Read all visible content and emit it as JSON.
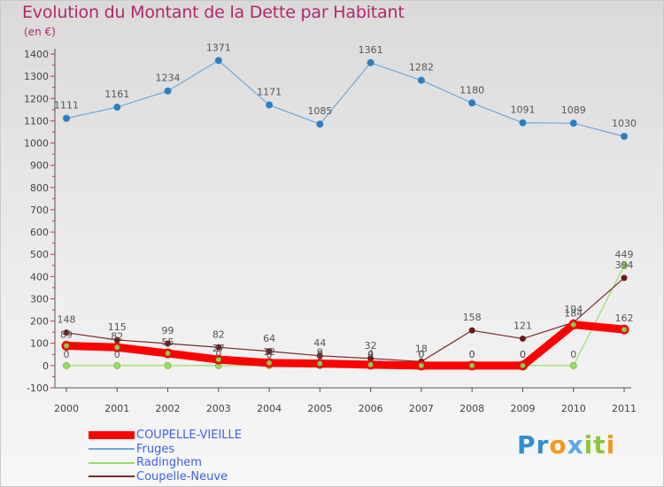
{
  "title": "Evolution du Montant de la Dette par Habitant",
  "subtitle": "(en €)",
  "brand": "Proxiti",
  "chart_data": {
    "type": "line",
    "title": "Evolution du Montant de la Dette par Habitant",
    "subtitle": "(en €)",
    "x": [
      "2000",
      "2001",
      "2002",
      "2003",
      "2004",
      "2005",
      "2006",
      "2007",
      "2008",
      "2009",
      "2010",
      "2011"
    ],
    "ylim": [
      -100,
      1400
    ],
    "yticks": [
      -100,
      0,
      100,
      200,
      300,
      400,
      500,
      600,
      700,
      800,
      900,
      1000,
      1100,
      1200,
      1300,
      1400
    ],
    "grid": false,
    "legend_position": "bottom-left",
    "series": [
      {
        "name": "COUPELLE-VIEILLE",
        "color": "#ff0000",
        "values": [
          89,
          82,
          55,
          27,
          12,
          9,
          4,
          0,
          0,
          0,
          184,
          162
        ],
        "labels": [
          "89",
          "82",
          "55",
          "27",
          "12",
          "9",
          "4",
          "0",
          "0",
          "0",
          "184",
          "162"
        ]
      },
      {
        "name": "Fruges",
        "color": "#6fa8dc",
        "values": [
          1111,
          1161,
          1234,
          1371,
          1171,
          1085,
          1361,
          1282,
          1180,
          1091,
          1089,
          1030
        ],
        "labels": [
          "1111",
          "1161",
          "1234",
          "1371",
          "1171",
          "1085",
          "1361",
          "1282",
          "1180",
          "1091",
          "1089",
          "1030"
        ]
      },
      {
        "name": "Radinghem",
        "color": "#99dd66",
        "values": [
          0,
          0,
          0,
          0,
          0,
          0,
          0,
          0,
          0,
          0,
          0,
          449
        ],
        "labels": [
          "0",
          "0",
          "",
          "0",
          "0",
          "0",
          "0",
          "0",
          "0",
          "0",
          "0",
          "449"
        ]
      },
      {
        "name": "Coupelle-Neuve",
        "color": "#7a2a2a",
        "values": [
          148,
          115,
          99,
          82,
          64,
          44,
          32,
          18,
          158,
          121,
          194,
          394
        ],
        "labels": [
          "148",
          "115",
          "99",
          "82",
          "64",
          "44",
          "32",
          "18",
          "158",
          "121",
          "194",
          "394"
        ]
      }
    ]
  }
}
